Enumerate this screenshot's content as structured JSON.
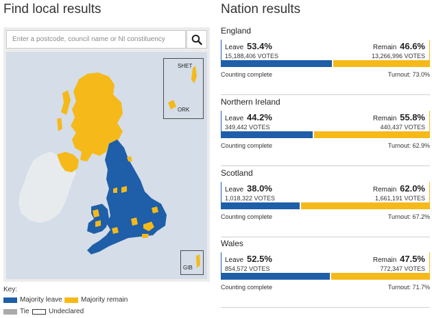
{
  "left_heading": "Find local results",
  "right_heading": "Nation results",
  "search": {
    "placeholder": "Enter a postcode, council name or NI constituency"
  },
  "map": {
    "inset_labels": {
      "shet": "SHET",
      "ork": "ORK",
      "gib": "GIB"
    }
  },
  "key": {
    "title": "Key:",
    "items": [
      {
        "label": "Majority leave",
        "color": "#1f5ea8"
      },
      {
        "label": "Majority remain",
        "color": "#f5b919"
      },
      {
        "label": "Tie",
        "color": "#aaaaaa"
      },
      {
        "label": "Undeclared",
        "color": "#ffffff"
      }
    ]
  },
  "colors": {
    "leave": "#1f5ea8",
    "remain": "#f5b919",
    "sea": "#d4dde8",
    "ireland": "#e8ebee"
  },
  "leave_label": "Leave",
  "remain_label": "Remain",
  "nations": [
    {
      "name": "England",
      "leave_pct": "53.4%",
      "leave_votes": "15,188,406 VOTES",
      "remain_pct": "46.6%",
      "remain_votes": "13,266,996 VOTES",
      "leave_share": 53.4,
      "status": "Counting complete",
      "turnout": "Turnout: 73.0%"
    },
    {
      "name": "Northern Ireland",
      "leave_pct": "44.2%",
      "leave_votes": "349,442 VOTES",
      "remain_pct": "55.8%",
      "remain_votes": "440,437 VOTES",
      "leave_share": 44.2,
      "status": "Counting complete",
      "turnout": "Turnout: 62.9%"
    },
    {
      "name": "Scotland",
      "leave_pct": "38.0%",
      "leave_votes": "1,018,322 VOTES",
      "remain_pct": "62.0%",
      "remain_votes": "1,661,191 VOTES",
      "leave_share": 38.0,
      "status": "Counting complete",
      "turnout": "Turnout: 67.2%"
    },
    {
      "name": "Wales",
      "leave_pct": "52.5%",
      "leave_votes": "854,572 VOTES",
      "remain_pct": "47.5%",
      "remain_votes": "772,347 VOTES",
      "leave_share": 52.5,
      "status": "Counting complete",
      "turnout": "Turnout: 71.7%"
    }
  ]
}
